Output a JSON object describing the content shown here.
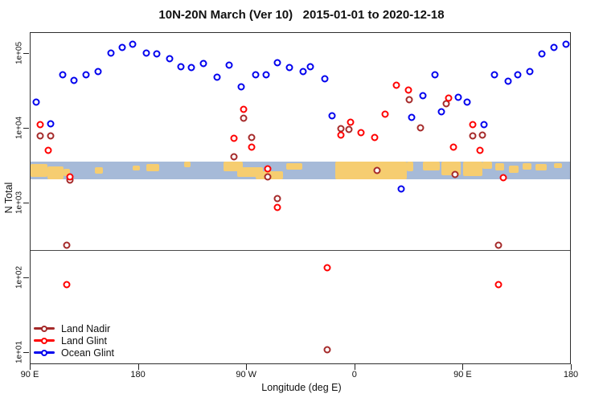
{
  "title": "10N-20N March (Ver 10)   2015-01-01 to 2020-12-18",
  "chart_data": {
    "type": "scatter",
    "title": "10N-20N March (Ver 10)   2015-01-01 to 2020-12-18",
    "xlabel": "Longitude (deg E)",
    "ylabel": "N Total",
    "y_scale": "log10",
    "y_log_range": [
      0.84,
      5.28
    ],
    "x_axis_deg_range": [
      90,
      540
    ],
    "grid": false,
    "legend_position": "bottom-left",
    "x_ticks": [
      {
        "deg": 90,
        "label": "90 E"
      },
      {
        "deg": 180,
        "label": "180"
      },
      {
        "deg": 270,
        "label": "90 W"
      },
      {
        "deg": 360,
        "label": "0"
      },
      {
        "deg": 450,
        "label": "90 E"
      },
      {
        "deg": 540,
        "label": "180"
      }
    ],
    "y_ticks": [
      {
        "log": 1,
        "label": "1e+01"
      },
      {
        "log": 2,
        "label": "1e+02"
      },
      {
        "log": 3,
        "label": "1e+03"
      },
      {
        "log": 4,
        "label": "1e+04"
      },
      {
        "log": 5,
        "label": "1e+05"
      }
    ],
    "threshold_line_value": 238,
    "map_band": {
      "value_top": 3620,
      "value_bottom": 2100,
      "ocean_color": "#A6BAD8",
      "land_color": "#F6CD70",
      "land_patches": [
        {
          "x0": 0.0,
          "x1": 0.031,
          "y0": 0.15,
          "y1": 0.85
        },
        {
          "x0": 0.031,
          "x1": 0.061,
          "y0": 0.25,
          "y1": 1.0
        },
        {
          "x0": 0.061,
          "x1": 0.073,
          "y0": 0.4,
          "y1": 0.8
        },
        {
          "x0": 0.119,
          "x1": 0.134,
          "y0": 0.3,
          "y1": 0.7
        },
        {
          "x0": 0.19,
          "x1": 0.203,
          "y0": 0.2,
          "y1": 0.5
        },
        {
          "x0": 0.214,
          "x1": 0.238,
          "y0": 0.15,
          "y1": 0.55
        },
        {
          "x0": 0.284,
          "x1": 0.296,
          "y0": 0.0,
          "y1": 0.3
        },
        {
          "x0": 0.358,
          "x1": 0.394,
          "y0": 0.0,
          "y1": 0.55
        },
        {
          "x0": 0.383,
          "x1": 0.431,
          "y0": 0.3,
          "y1": 0.85
        },
        {
          "x0": 0.418,
          "x1": 0.468,
          "y0": 0.55,
          "y1": 1.0
        },
        {
          "x0": 0.474,
          "x1": 0.504,
          "y0": 0.1,
          "y1": 0.45
        },
        {
          "x0": 0.565,
          "x1": 0.697,
          "y0": 0.0,
          "y1": 1.0
        },
        {
          "x0": 0.697,
          "x1": 0.709,
          "y0": 0.0,
          "y1": 0.55
        },
        {
          "x0": 0.727,
          "x1": 0.759,
          "y0": 0.0,
          "y1": 0.5
        },
        {
          "x0": 0.761,
          "x1": 0.797,
          "y0": 0.0,
          "y1": 0.75
        },
        {
          "x0": 0.802,
          "x1": 0.838,
          "y0": 0.0,
          "y1": 0.8
        },
        {
          "x0": 0.838,
          "x1": 0.856,
          "y0": 0.0,
          "y1": 0.4
        },
        {
          "x0": 0.862,
          "x1": 0.878,
          "y0": 0.1,
          "y1": 0.5
        },
        {
          "x0": 0.886,
          "x1": 0.905,
          "y0": 0.2,
          "y1": 0.65
        },
        {
          "x0": 0.912,
          "x1": 0.929,
          "y0": 0.1,
          "y1": 0.45
        },
        {
          "x0": 0.936,
          "x1": 0.957,
          "y0": 0.15,
          "y1": 0.5
        },
        {
          "x0": 0.97,
          "x1": 0.985,
          "y0": 0.1,
          "y1": 0.35
        }
      ]
    },
    "series": [
      {
        "name": "Land Nadir",
        "color": "#A52A2A",
        "points": [
          {
            "deg": 98,
            "v": 8000
          },
          {
            "deg": 107,
            "v": 8000
          },
          {
            "deg": 123,
            "v": 2050
          },
          {
            "deg": 120,
            "v": 276
          },
          {
            "deg": 267,
            "v": 13800
          },
          {
            "deg": 274,
            "v": 7600
          },
          {
            "deg": 259,
            "v": 4200
          },
          {
            "deg": 287,
            "v": 2260
          },
          {
            "deg": 295,
            "v": 1160
          },
          {
            "deg": 337,
            "v": 11
          },
          {
            "deg": 348,
            "v": 10000
          },
          {
            "deg": 355,
            "v": 9700
          },
          {
            "deg": 378,
            "v": 2760
          },
          {
            "deg": 405,
            "v": 24400
          },
          {
            "deg": 414,
            "v": 10300
          },
          {
            "deg": 436,
            "v": 21500
          },
          {
            "deg": 443,
            "v": 2440
          },
          {
            "deg": 458,
            "v": 8000
          },
          {
            "deg": 466,
            "v": 8200
          },
          {
            "deg": 479,
            "v": 276
          }
        ]
      },
      {
        "name": "Land Glint",
        "color": "#FF0000",
        "points": [
          {
            "deg": 98,
            "v": 11300
          },
          {
            "deg": 105,
            "v": 5100
          },
          {
            "deg": 123,
            "v": 2260
          },
          {
            "deg": 120,
            "v": 82
          },
          {
            "deg": 267,
            "v": 18100
          },
          {
            "deg": 259,
            "v": 7400
          },
          {
            "deg": 274,
            "v": 5700
          },
          {
            "deg": 287,
            "v": 2900
          },
          {
            "deg": 295,
            "v": 880
          },
          {
            "deg": 337,
            "v": 138
          },
          {
            "deg": 356,
            "v": 12200
          },
          {
            "deg": 348,
            "v": 8200
          },
          {
            "deg": 365,
            "v": 8800
          },
          {
            "deg": 376,
            "v": 7600
          },
          {
            "deg": 385,
            "v": 15600
          },
          {
            "deg": 394,
            "v": 38000
          },
          {
            "deg": 404,
            "v": 33000
          },
          {
            "deg": 438,
            "v": 25600
          },
          {
            "deg": 442,
            "v": 5700
          },
          {
            "deg": 458,
            "v": 11300
          },
          {
            "deg": 464,
            "v": 5100
          },
          {
            "deg": 483,
            "v": 2200
          },
          {
            "deg": 479,
            "v": 82
          }
        ]
      },
      {
        "name": "Ocean Glint",
        "color": "#0000EE",
        "points": [
          {
            "deg": 95,
            "v": 22600
          },
          {
            "deg": 107,
            "v": 11600
          },
          {
            "deg": 117,
            "v": 52500
          },
          {
            "deg": 126,
            "v": 44200
          },
          {
            "deg": 136,
            "v": 52500
          },
          {
            "deg": 146,
            "v": 57900
          },
          {
            "deg": 157,
            "v": 103000
          },
          {
            "deg": 166,
            "v": 122000
          },
          {
            "deg": 175,
            "v": 135000
          },
          {
            "deg": 186,
            "v": 103000
          },
          {
            "deg": 195,
            "v": 100000
          },
          {
            "deg": 206,
            "v": 86000
          },
          {
            "deg": 215,
            "v": 67000
          },
          {
            "deg": 224,
            "v": 66000
          },
          {
            "deg": 234,
            "v": 74000
          },
          {
            "deg": 245,
            "v": 49000
          },
          {
            "deg": 255,
            "v": 71000
          },
          {
            "deg": 265,
            "v": 36000
          },
          {
            "deg": 277,
            "v": 52500
          },
          {
            "deg": 286,
            "v": 52500
          },
          {
            "deg": 295,
            "v": 76000
          },
          {
            "deg": 305,
            "v": 66000
          },
          {
            "deg": 317,
            "v": 58000
          },
          {
            "deg": 323,
            "v": 67000
          },
          {
            "deg": 335,
            "v": 46000
          },
          {
            "deg": 341,
            "v": 14900
          },
          {
            "deg": 398,
            "v": 1560
          },
          {
            "deg": 407,
            "v": 14200
          },
          {
            "deg": 416,
            "v": 27600
          },
          {
            "deg": 426,
            "v": 52500
          },
          {
            "deg": 432,
            "v": 16800
          },
          {
            "deg": 446,
            "v": 26200
          },
          {
            "deg": 453,
            "v": 22600
          },
          {
            "deg": 467,
            "v": 11300
          },
          {
            "deg": 476,
            "v": 52500
          },
          {
            "deg": 487,
            "v": 43000
          },
          {
            "deg": 495,
            "v": 52500
          },
          {
            "deg": 505,
            "v": 58000
          },
          {
            "deg": 515,
            "v": 100000
          },
          {
            "deg": 525,
            "v": 122000
          },
          {
            "deg": 535,
            "v": 135000
          }
        ]
      }
    ]
  }
}
